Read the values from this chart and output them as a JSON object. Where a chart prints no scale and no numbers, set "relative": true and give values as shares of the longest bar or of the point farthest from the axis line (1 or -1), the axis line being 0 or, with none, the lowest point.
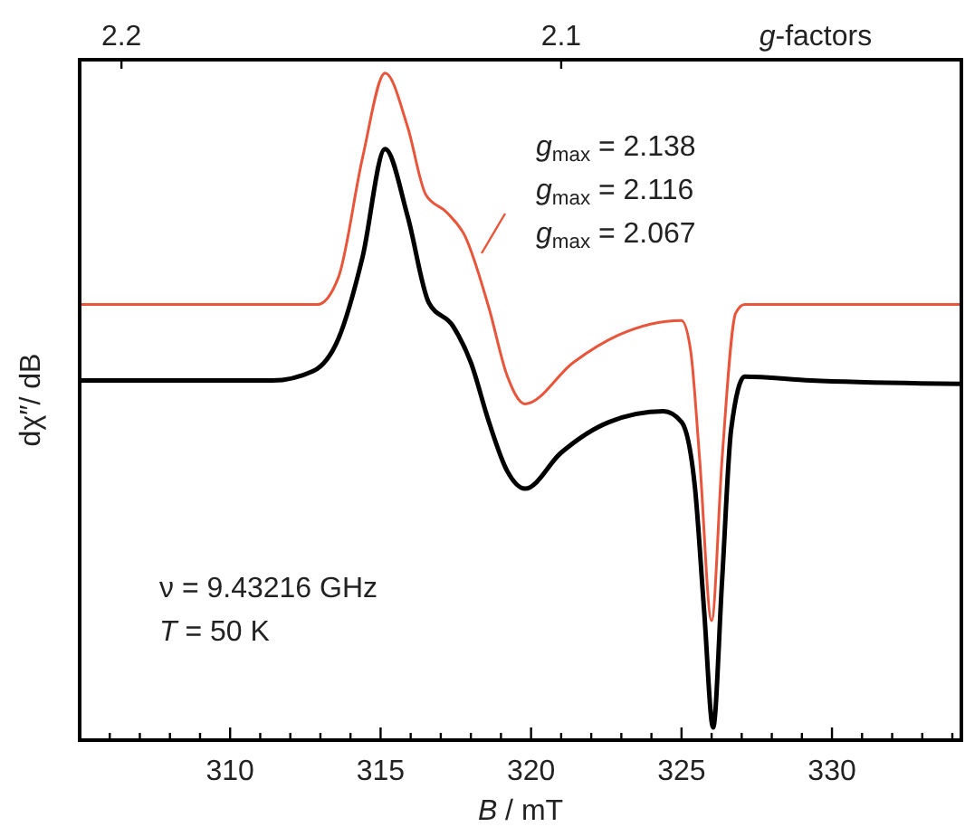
{
  "chart_data": {
    "type": "line",
    "relative": true,
    "xlabel": "B / mT",
    "ylabel": "dχ″/ dB",
    "x2label": "g-factors",
    "grid": false,
    "tick_labels": "x",
    "xlim": [
      305,
      334.3
    ],
    "xticks": [
      {
        "value": 306,
        "label": null
      },
      {
        "value": 307,
        "label": null
      },
      {
        "value": 308,
        "label": null
      },
      {
        "value": 309,
        "label": null
      },
      310,
      {
        "value": 311,
        "label": null
      },
      {
        "value": 312,
        "label": null
      },
      {
        "value": 313,
        "label": null
      },
      {
        "value": 314,
        "label": null
      },
      315,
      {
        "value": 316,
        "label": null
      },
      {
        "value": 317,
        "label": null
      },
      {
        "value": 318,
        "label": null
      },
      {
        "value": 319,
        "label": null
      },
      320,
      {
        "value": 321,
        "label": null
      },
      {
        "value": 322,
        "label": null
      },
      {
        "value": 323,
        "label": null
      },
      {
        "value": 324,
        "label": null
      },
      325,
      {
        "value": 326,
        "label": null
      },
      {
        "value": 327,
        "label": null
      },
      {
        "value": 328,
        "label": null
      },
      {
        "value": 329,
        "label": null
      },
      330,
      {
        "value": 331,
        "label": null
      },
      {
        "value": 332,
        "label": null
      },
      {
        "value": 333,
        "label": null
      },
      {
        "value": 334,
        "label": null
      }
    ],
    "x2lim": [
      2.2095,
      2.009
    ],
    "x2ticks": [
      2.2,
      2.1
    ],
    "series": [
      {
        "color": "#e8553a",
        "x": [
          305.0,
          312.9,
          313.6,
          314.4,
          315.15,
          315.9,
          316.5,
          317.2,
          317.8,
          318.6,
          319.2,
          319.8,
          321.4,
          322.9,
          325.0,
          325.3,
          325.6,
          326.0,
          326.35,
          326.8,
          327.1,
          334.3
        ],
        "values": [
          0.653,
          0.653,
          0.694,
          0.873,
          1.0,
          0.919,
          0.818,
          0.791,
          0.756,
          0.648,
          0.547,
          0.504,
          0.566,
          0.607,
          0.629,
          0.585,
          0.423,
          0.179,
          0.423,
          0.64,
          0.653,
          0.653
        ]
      },
      {
        "color": "#000000",
        "x": [
          305.0,
          311.4,
          312.75,
          313.6,
          314.4,
          315.15,
          315.9,
          316.6,
          317.4,
          318.0,
          318.6,
          319.2,
          319.8,
          321.0,
          322.6,
          324.4,
          325.0,
          325.45,
          325.75,
          326.05,
          326.35,
          326.65,
          327.1,
          329.3,
          334.3
        ],
        "values": [
          0.539,
          0.539,
          0.553,
          0.602,
          0.724,
          0.886,
          0.785,
          0.656,
          0.621,
          0.566,
          0.477,
          0.404,
          0.377,
          0.431,
          0.477,
          0.493,
          0.477,
          0.377,
          0.195,
          0.019,
          0.241,
          0.466,
          0.545,
          0.539,
          0.534
        ]
      }
    ],
    "annotations": [
      "g$_{max}$ = 2.138",
      "g$_{max}$ = 2.116",
      "g$_{max}$ = 2.067",
      "ν = 9.43216 GHz",
      "T = 50 K"
    ]
  }
}
